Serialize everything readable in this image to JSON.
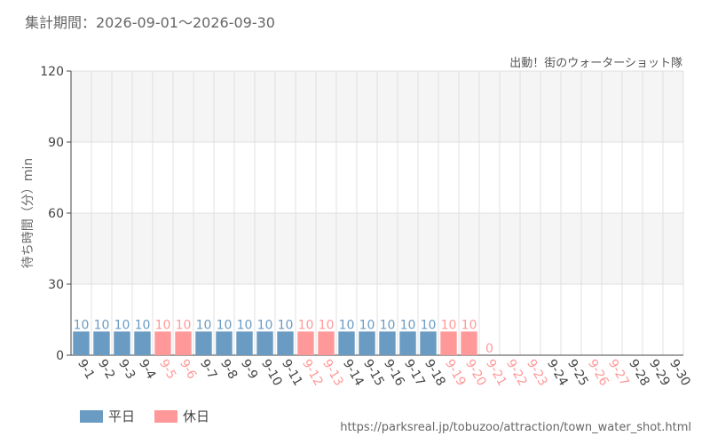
{
  "header": {
    "period": "集計期間：2026-09-01〜2026-09-30"
  },
  "colors": {
    "weekday": "#6a9bc3",
    "holiday": "#ff9999",
    "grid": "#e0e0e0",
    "band": "#f5f5f5",
    "axis": "#444444"
  },
  "legend": {
    "weekday": "平日",
    "holiday": "休日"
  },
  "footer": {
    "source": "https://parksreal.jp/tobuzoo/attraction/town_water_shot.html"
  },
  "chart_data": {
    "type": "bar",
    "title": "出動！街のウォーターショット隊",
    "ylabel": "待ち時間（分）min",
    "ylim": [
      0,
      120
    ],
    "yticks": [
      0,
      30,
      60,
      90,
      120
    ],
    "categories": [
      "9-1",
      "9-2",
      "9-3",
      "9-4",
      "9-5",
      "9-6",
      "9-7",
      "9-8",
      "9-9",
      "9-10",
      "9-11",
      "9-12",
      "9-13",
      "9-14",
      "9-15",
      "9-16",
      "9-17",
      "9-18",
      "9-19",
      "9-20",
      "9-21",
      "9-22",
      "9-23",
      "9-24",
      "9-25",
      "9-26",
      "9-27",
      "9-28",
      "9-29",
      "9-30"
    ],
    "values": [
      10,
      10,
      10,
      10,
      10,
      10,
      10,
      10,
      10,
      10,
      10,
      10,
      10,
      10,
      10,
      10,
      10,
      10,
      10,
      10,
      0,
      null,
      null,
      null,
      null,
      null,
      null,
      null,
      null,
      null
    ],
    "day_type": [
      "weekday",
      "weekday",
      "weekday",
      "weekday",
      "holiday",
      "holiday",
      "weekday",
      "weekday",
      "weekday",
      "weekday",
      "weekday",
      "holiday",
      "holiday",
      "weekday",
      "weekday",
      "weekday",
      "weekday",
      "weekday",
      "holiday",
      "holiday",
      "holiday",
      "holiday",
      "holiday",
      "weekday",
      "weekday",
      "holiday",
      "holiday",
      "weekday",
      "weekday",
      "weekday"
    ]
  }
}
